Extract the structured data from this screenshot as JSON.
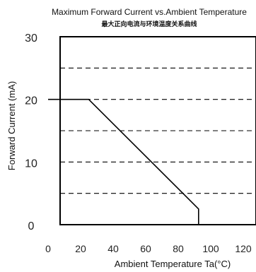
{
  "chart_data": {
    "type": "line",
    "title": "Maximum Forward Current vs.Ambient Temperature",
    "subtitle": "最大正向电流与环境温度关系曲线",
    "xlabel": "Ambient Temperature Ta(°C)",
    "ylabel": "Forward Current (mA)",
    "xlim": [
      0,
      120
    ],
    "ylim": [
      0,
      30
    ],
    "x_ticks": [
      "0",
      "20",
      "40",
      "60",
      "80",
      "100",
      "120"
    ],
    "y_ticks": [
      "0",
      "10",
      "20",
      "30"
    ],
    "grid": true,
    "series": [
      {
        "x": [
          0,
          25,
          92.5,
          92.5
        ],
        "y": [
          20,
          20,
          2.5,
          0
        ]
      }
    ]
  }
}
